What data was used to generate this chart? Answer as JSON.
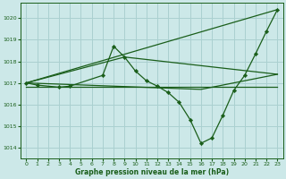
{
  "bg_color": "#cce8e8",
  "grid_color": "#aad0d0",
  "line_color": "#1a5e1a",
  "xlabel": "Graphe pression niveau de la mer (hPa)",
  "xlim": [
    -0.5,
    23.5
  ],
  "ylim": [
    1013.5,
    1020.7
  ],
  "yticks": [
    1014,
    1015,
    1016,
    1017,
    1018,
    1019,
    1020
  ],
  "xticks": [
    0,
    1,
    2,
    3,
    4,
    5,
    6,
    7,
    8,
    9,
    10,
    11,
    12,
    13,
    14,
    15,
    16,
    17,
    18,
    19,
    20,
    21,
    22,
    23
  ],
  "main_series": {
    "x": [
      0,
      1,
      3,
      4,
      7,
      8,
      9,
      10,
      11,
      12,
      13,
      14,
      15,
      16,
      17,
      18,
      19,
      20,
      21,
      22,
      23
    ],
    "y": [
      1017.0,
      1016.9,
      1016.8,
      1016.85,
      1017.35,
      1018.7,
      1018.2,
      1017.55,
      1017.1,
      1016.85,
      1016.55,
      1016.1,
      1015.3,
      1014.2,
      1014.45,
      1015.5,
      1016.65,
      1017.35,
      1018.35,
      1019.4,
      1020.4
    ]
  },
  "straight_lines": [
    {
      "x": [
        0,
        23
      ],
      "y": [
        1017.0,
        1020.4
      ]
    },
    {
      "x": [
        0,
        9,
        23
      ],
      "y": [
        1017.0,
        1018.2,
        1017.4
      ]
    },
    {
      "x": [
        0,
        16,
        23
      ],
      "y": [
        1017.0,
        1016.7,
        1017.4
      ]
    },
    {
      "x": [
        0,
        23
      ],
      "y": [
        1016.8,
        1016.8
      ]
    }
  ]
}
